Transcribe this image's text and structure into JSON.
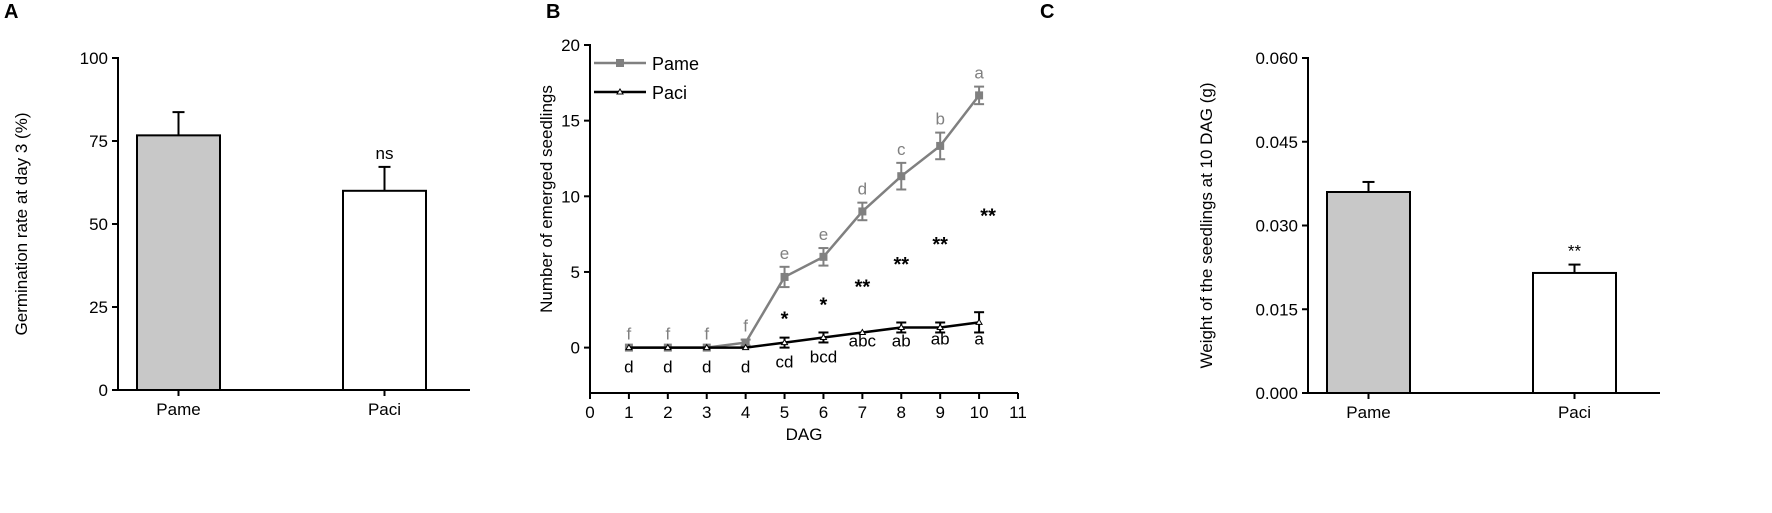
{
  "colors": {
    "pame": "#808080",
    "pame_fill": "#c8c8c8",
    "paci": "#000000",
    "paci_fill": "#ffffff",
    "axis": "#000000"
  },
  "chart_data": [
    {
      "panel_label": "A",
      "type": "bar",
      "ylabel": "Germination rate at day 3 (%)",
      "xlabel": "",
      "categories": [
        "Pame",
        "Paci"
      ],
      "values": [
        76.7,
        60.0
      ],
      "errors": [
        7.0,
        7.2
      ],
      "bar_annotations": [
        "",
        "ns"
      ],
      "ylim": [
        0,
        100
      ],
      "yticks": [
        "0",
        "25",
        "50",
        "75",
        "100"
      ],
      "grid": false
    },
    {
      "panel_label": "B",
      "type": "line",
      "ylabel": "Number of emerged seedlings",
      "xlabel": "DAG",
      "xlim": [
        0,
        11
      ],
      "ylim": [
        -3,
        20
      ],
      "xticks": [
        "0",
        "1",
        "2",
        "3",
        "4",
        "5",
        "6",
        "7",
        "8",
        "9",
        "10",
        "11"
      ],
      "yticks": [
        "0",
        "5",
        "10",
        "15",
        "20"
      ],
      "legend_position": "top-left",
      "grid": false,
      "x": [
        1,
        2,
        3,
        4,
        5,
        6,
        7,
        8,
        9,
        10
      ],
      "series": [
        {
          "name": "Pame",
          "marker": "square",
          "values": [
            0,
            0,
            0,
            0.33,
            4.67,
            6.0,
            9.0,
            11.33,
            13.33,
            16.67
          ],
          "errors": [
            0,
            0,
            0,
            0.2,
            0.67,
            0.58,
            0.58,
            0.88,
            0.88,
            0.58
          ],
          "letters": [
            "f",
            "f",
            "f",
            "f",
            "e",
            "e",
            "d",
            "c",
            "b",
            "a"
          ]
        },
        {
          "name": "Paci",
          "marker": "triangle",
          "values": [
            0,
            0,
            0,
            0,
            0.33,
            0.67,
            1.0,
            1.33,
            1.33,
            1.67
          ],
          "errors": [
            0,
            0,
            0,
            0,
            0.33,
            0.33,
            0,
            0.33,
            0.33,
            0.67
          ],
          "letters": [
            "d",
            "d",
            "d",
            "d",
            "cd",
            "bcd",
            "abc",
            "ab",
            "ab",
            "a"
          ]
        }
      ],
      "significance": [
        "",
        "",
        "",
        "",
        "*",
        "*",
        "**",
        "**",
        "**",
        "**"
      ]
    },
    {
      "panel_label": "C",
      "type": "bar",
      "ylabel": "Weight of the seedlings at 10 DAG (g)",
      "xlabel": "",
      "categories": [
        "Pame",
        "Paci"
      ],
      "values": [
        0.036,
        0.0215
      ],
      "errors": [
        0.0018,
        0.0015
      ],
      "bar_annotations": [
        "",
        "**"
      ],
      "ylim": [
        0,
        0.06
      ],
      "yticks": [
        "0.000",
        "0.015",
        "0.030",
        "0.045",
        "0.060"
      ],
      "grid": false
    }
  ]
}
